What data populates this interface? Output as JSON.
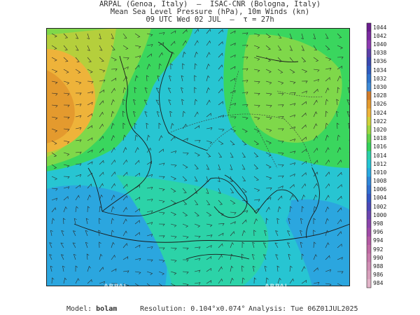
{
  "title": {
    "line1": "ARPAL (Genoa, Italy)  –  ISAC-CNR (Bologna, Italy)",
    "line2": "Mean Sea Level Pressure (hPa), 10m Winds (kn)",
    "line3": "09 UTC Wed 02 JUL  –  τ = 27h"
  },
  "colorbar": {
    "labels": [
      "1044",
      "1042",
      "1040",
      "1038",
      "1036",
      "1034",
      "1032",
      "1030",
      "1028",
      "1026",
      "1024",
      "1022",
      "1020",
      "1018",
      "1016",
      "1014",
      "1012",
      "1010",
      "1008",
      "1006",
      "1004",
      "1002",
      "1000",
      "998",
      "996",
      "994",
      "992",
      "990",
      "988",
      "986",
      "984"
    ],
    "colors": [
      "#6a1d8e",
      "#7a2aa0",
      "#8c3ab0",
      "#5b3fa8",
      "#3a48b0",
      "#2e5bc0",
      "#2f74cc",
      "#3e8ad6",
      "#d07a2a",
      "#e49a2e",
      "#eeb33a",
      "#cfd03a",
      "#9bd640",
      "#5fd24a",
      "#34d25a",
      "#2bd0a8",
      "#22c4d4",
      "#28a8e0",
      "#2e86d8",
      "#2f6fd0",
      "#3355c4",
      "#4a48b8",
      "#6a44b0",
      "#8a44ac",
      "#a04aa8",
      "#b45aa4",
      "#c06aa4",
      "#c87cac",
      "#d08eb4",
      "#d8a0bc",
      "#e2b4c8"
    ]
  },
  "map": {
    "colors": {
      "h1024": "#e49a2e",
      "h1022": "#eeb33a",
      "h1020": "#b5cf3c",
      "h1018": "#7fd84a",
      "h1016": "#3ad65e",
      "h1014": "#2cd3a8",
      "h1012": "#27c5d2",
      "h1010": "#2ba6df"
    },
    "watermark": "ARPAL"
  },
  "footer": {
    "model_label": "Model:",
    "model_value": "bolam",
    "resolution_label": "Resolution:",
    "resolution_value": "0.104°x0.074°",
    "analysis_label": "Analysis:",
    "analysis_value": "Tue 06Z01JUL2025"
  }
}
